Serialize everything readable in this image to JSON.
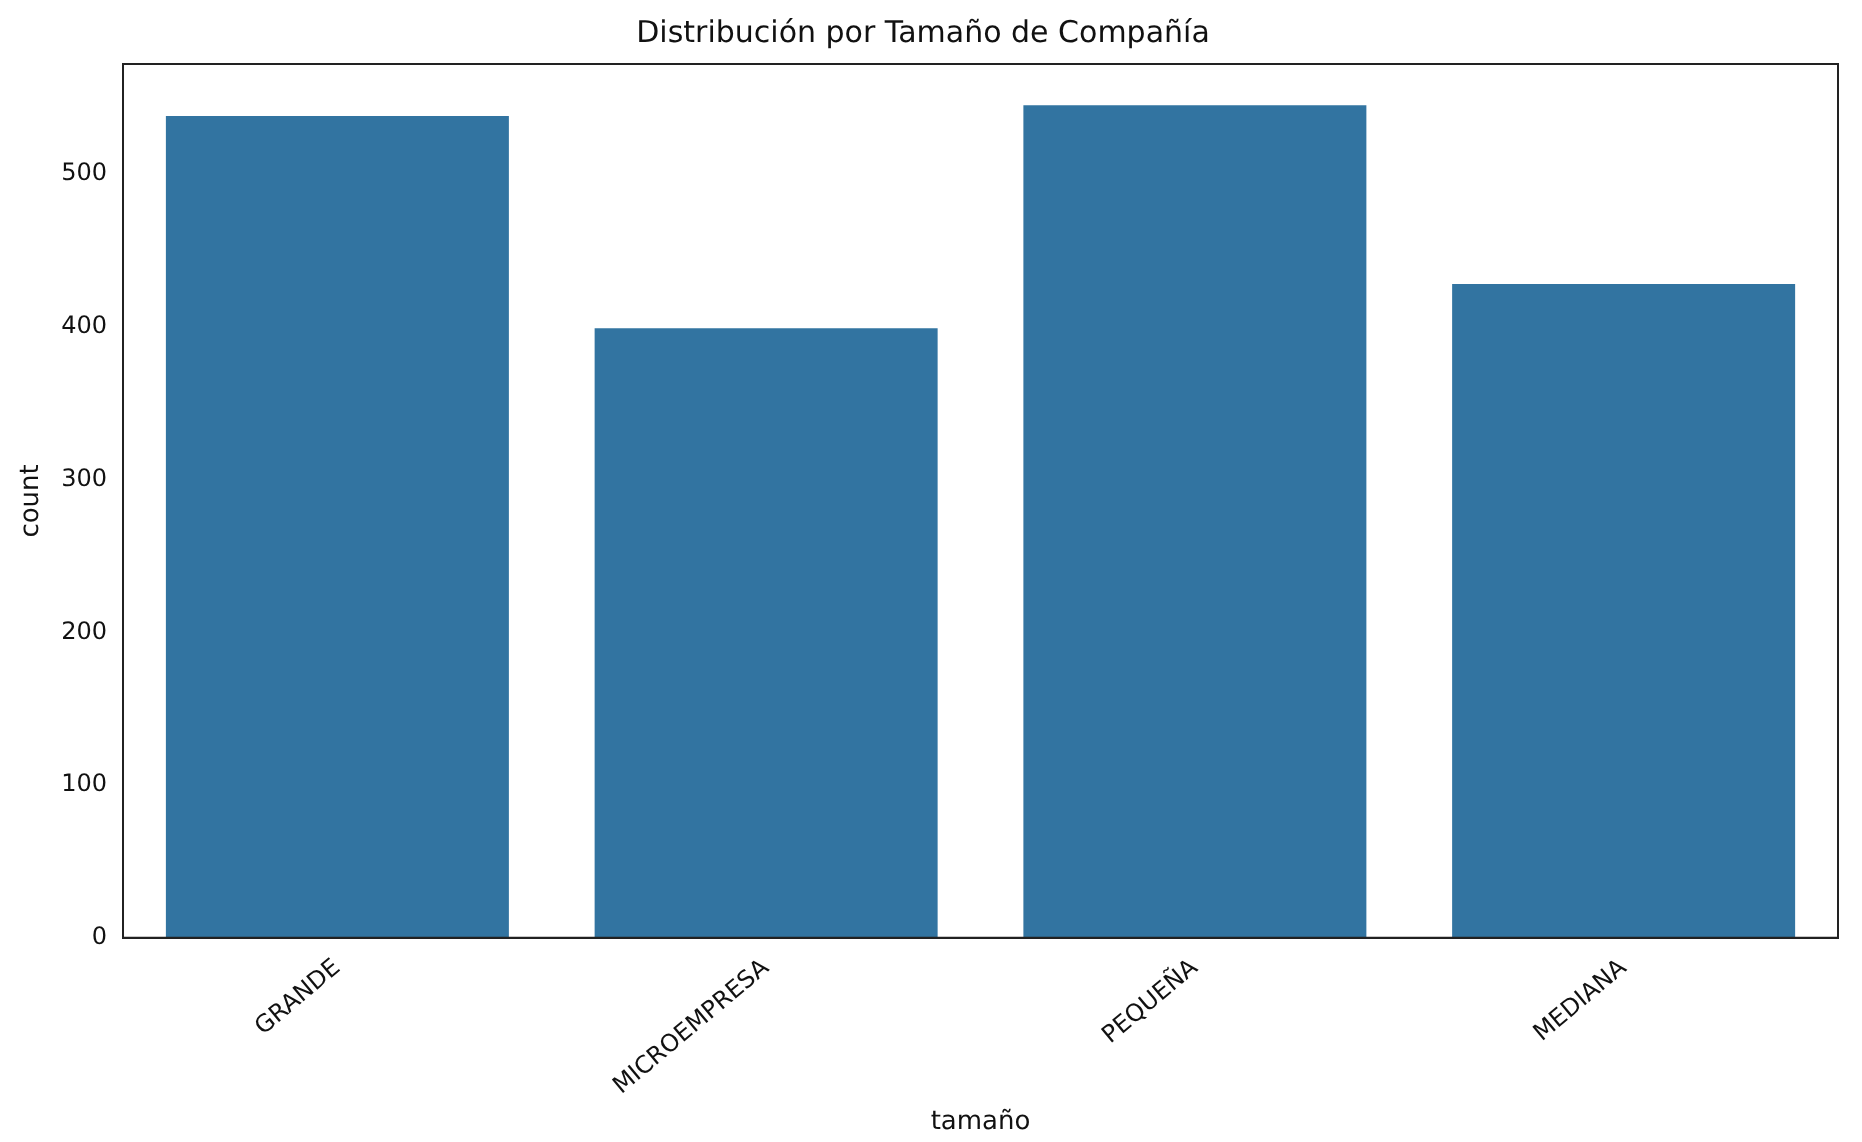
{
  "chart_data": {
    "type": "bar",
    "title": "Distribución por Tamaño de Compañía",
    "xlabel": "tamaño",
    "ylabel": "count",
    "categories": [
      "GRANDE",
      "MICROEMPRESA",
      "PEQUEÑA",
      "MEDIANA"
    ],
    "values": [
      538,
      399,
      545,
      428
    ],
    "color": "#3274a1",
    "ylim": [
      0,
      572
    ],
    "yticks": [
      0,
      100,
      200,
      300,
      400,
      500
    ],
    "grid": false,
    "legend": false
  }
}
